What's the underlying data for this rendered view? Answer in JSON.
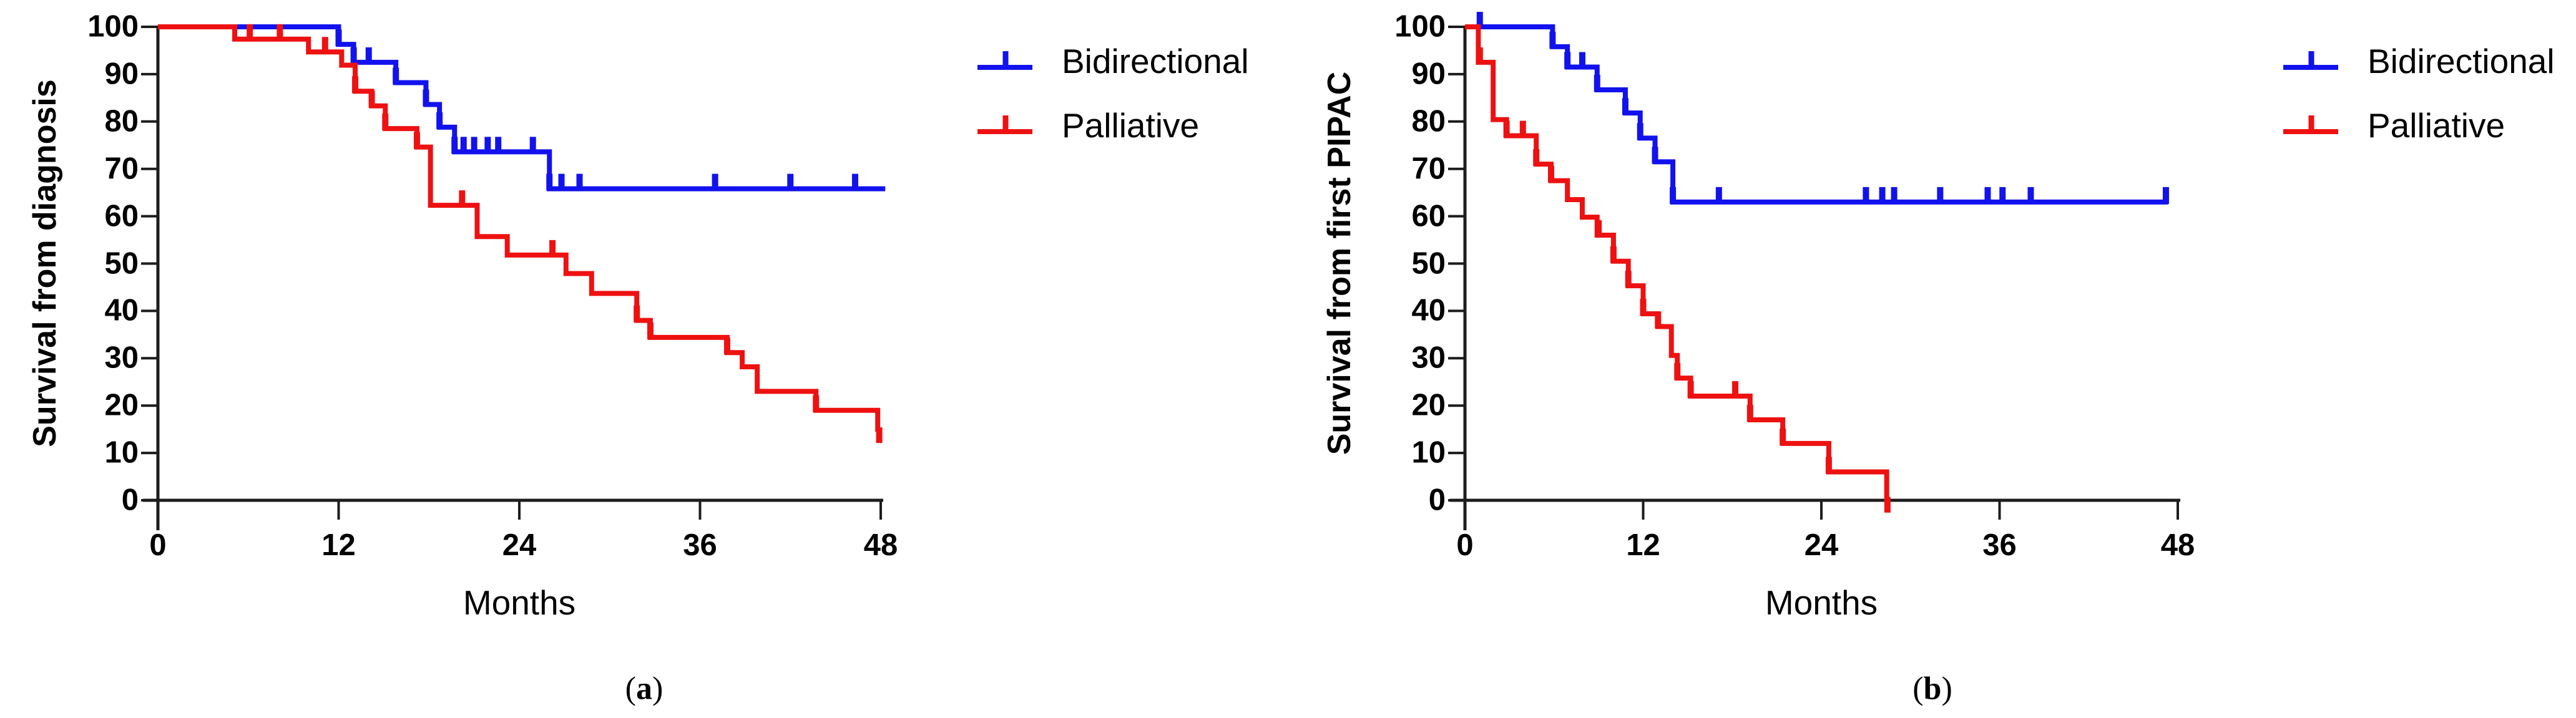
{
  "figure": {
    "background": "#ffffff",
    "axis_color": "#1c1c1c",
    "text_color": "#000000",
    "blue_accent": "#1212ee",
    "red_accent": "#ee1111"
  },
  "chart_data": [
    {
      "id": "a",
      "type": "line",
      "subtype": "kaplan-meier-step",
      "title": "",
      "ylabel": "Survival from diagnosis",
      "xlabel": "Months",
      "caption": {
        "open": "(",
        "letter": "a",
        "close": ")"
      },
      "xlim": [
        0,
        48
      ],
      "ylim": [
        0,
        100
      ],
      "xticks": [
        0,
        12,
        24,
        36,
        48
      ],
      "yticks": [
        0,
        10,
        20,
        30,
        40,
        50,
        60,
        70,
        80,
        90,
        100
      ],
      "grid": false,
      "legend_position": "right-of-plot-top",
      "legend": [
        {
          "label": "Bidirectional",
          "color": "#1212ee"
        },
        {
          "label": "Palliative",
          "color": "#ee1111"
        }
      ],
      "series": [
        {
          "name": "Bidirectional",
          "color": "#1212ee",
          "steps": [
            [
              0,
              100
            ],
            [
              12,
              96.3
            ],
            [
              13,
              92.5
            ],
            [
              15.8,
              88.2
            ],
            [
              17.8,
              83.6
            ],
            [
              18.7,
              78.8
            ],
            [
              19.7,
              73.6
            ],
            [
              26,
              65.8
            ]
          ],
          "censor_times": [
            12,
            13,
            14,
            15.8,
            17.8,
            18.7,
            19.7,
            20.3,
            21,
            21.9,
            22.6,
            24.9,
            26,
            26.8,
            28,
            37,
            42,
            46.3
          ],
          "end_time": 48.3,
          "terminal_censor": false
        },
        {
          "name": "Palliative",
          "color": "#ee1111",
          "steps": [
            [
              0,
              100
            ],
            [
              5.1,
              97.4
            ],
            [
              10,
              94.7
            ],
            [
              12.2,
              91.9
            ],
            [
              13.1,
              86.4
            ],
            [
              14.2,
              83.3
            ],
            [
              15.1,
              78.5
            ],
            [
              17.2,
              74.6
            ],
            [
              18.1,
              62.3
            ],
            [
              21.2,
              55.7
            ],
            [
              23.2,
              51.8
            ],
            [
              27.1,
              47.9
            ],
            [
              28.8,
              43.7
            ],
            [
              31.8,
              38
            ],
            [
              32.7,
              34.4
            ],
            [
              37.8,
              31.2
            ],
            [
              38.8,
              28.2
            ],
            [
              39.8,
              23
            ],
            [
              43.7,
              19
            ],
            [
              47.8,
              15
            ]
          ],
          "censor_times": [
            6.1,
            8.1,
            11.1,
            13.1,
            14.2,
            15.1,
            17.2,
            20.2,
            26.2,
            31.8,
            32.7,
            37.8,
            43.7
          ],
          "end_time": 47.9,
          "terminal_censor": true
        }
      ]
    },
    {
      "id": "b",
      "type": "line",
      "subtype": "kaplan-meier-step",
      "title": "",
      "ylabel": "Survival from first PIPAC",
      "xlabel": "Months",
      "caption": {
        "open": "(",
        "letter": "b",
        "close": ")"
      },
      "xlim": [
        0,
        48
      ],
      "ylim": [
        0,
        100
      ],
      "xticks": [
        0,
        12,
        24,
        36,
        48
      ],
      "yticks": [
        0,
        10,
        20,
        30,
        40,
        50,
        60,
        70,
        80,
        90,
        100
      ],
      "grid": false,
      "legend_position": "right-of-plot-top",
      "legend": [
        {
          "label": "Bidirectional",
          "color": "#1212ee"
        },
        {
          "label": "Palliative",
          "color": "#ee1111"
        }
      ],
      "series": [
        {
          "name": "Bidirectional",
          "color": "#1212ee",
          "steps": [
            [
              0,
              100
            ],
            [
              5.9,
              95.8
            ],
            [
              6.9,
              91.5
            ],
            [
              8.9,
              86.7
            ],
            [
              10.8,
              81.8
            ],
            [
              11.8,
              76.5
            ],
            [
              12.8,
              71.5
            ],
            [
              14,
              63
            ]
          ],
          "censor_times": [
            1,
            5.9,
            6.9,
            7.9,
            8.9,
            10.8,
            11.8,
            12.8,
            14,
            17.1,
            27,
            28.1,
            28.9,
            32,
            35.2,
            36.2,
            38.1,
            47.2
          ],
          "end_time": 47.35,
          "terminal_censor": false
        },
        {
          "name": "Palliative",
          "color": "#ee1111",
          "steps": [
            [
              0,
              100
            ],
            [
              0.9,
              92.5
            ],
            [
              1.9,
              80.4
            ],
            [
              2.8,
              77
            ],
            [
              4.8,
              71
            ],
            [
              5.8,
              67.5
            ],
            [
              6.9,
              63.5
            ],
            [
              7.9,
              59.8
            ],
            [
              8.9,
              56
            ],
            [
              10,
              50.5
            ],
            [
              11,
              45.3
            ],
            [
              12,
              39.4
            ],
            [
              13,
              36.7
            ],
            [
              13.9,
              30.6
            ],
            [
              14.3,
              25.8
            ],
            [
              15.2,
              22
            ],
            [
              19.2,
              17
            ],
            [
              21.4,
              12
            ],
            [
              24.5,
              6
            ],
            [
              28.4,
              0.3
            ]
          ],
          "censor_times": [
            1,
            2.8,
            3.9,
            4.8,
            5.8,
            9,
            10,
            11,
            12,
            13,
            14.3,
            15.2,
            18.2,
            19.2,
            21.4,
            24.5
          ],
          "end_time": 28.45,
          "terminal_censor": true
        }
      ]
    }
  ]
}
